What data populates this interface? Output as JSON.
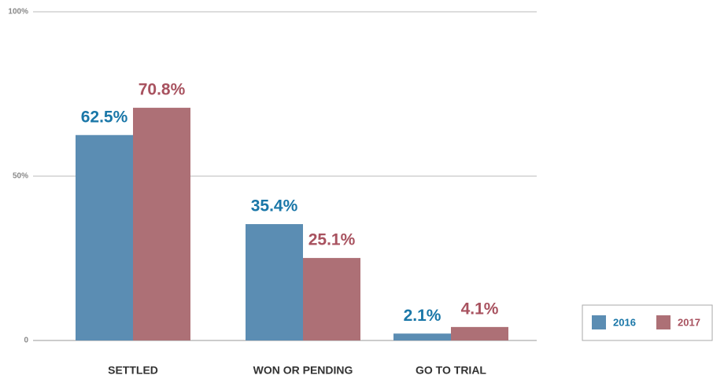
{
  "chart_data": {
    "type": "bar",
    "categories": [
      "SETTLED",
      "WON OR PENDING",
      "GO TO TRIAL"
    ],
    "series": [
      {
        "name": "2016",
        "color": "#5b8db3",
        "label_color": "#1a77a8",
        "values": [
          62.5,
          35.4,
          2.1
        ],
        "value_labels": [
          "62.5%",
          "35.4%",
          "2.1%"
        ]
      },
      {
        "name": "2017",
        "color": "#ad7076",
        "label_color": "#a8525f",
        "values": [
          70.8,
          25.1,
          4.1
        ],
        "value_labels": [
          "70.8%",
          "25.1%",
          "4.1%"
        ]
      }
    ],
    "ylim": [
      0,
      100
    ],
    "yticks": [
      0,
      {
        "value": 50,
        "label": "50%"
      },
      {
        "value": 100,
        "label": "100%"
      }
    ],
    "grid": true,
    "legend": "lower right"
  }
}
